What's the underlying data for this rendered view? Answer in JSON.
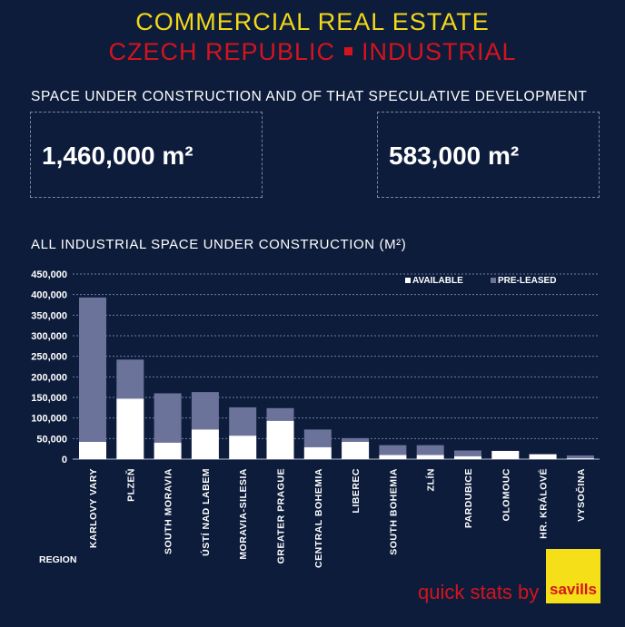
{
  "header": {
    "title_line1": "COMMERCIAL REAL ESTATE",
    "title_line2_a": "CZECH REPUBLIC",
    "title_line2_b": "INDUSTRIAL"
  },
  "summary": {
    "heading": "SPACE UNDER CONSTRUCTION AND OF THAT SPECULATIVE DEVELOPMENT",
    "total_construction": "1,460,000 m²",
    "speculative": "583,000 m²"
  },
  "chart_data": {
    "type": "bar",
    "stacked": true,
    "title": "ALL INDUSTRIAL SPACE UNDER CONSTRUCTION (M²)",
    "xlabel": "REGION",
    "ylabel": "",
    "ylim": [
      0,
      450000
    ],
    "yticks": [
      0,
      50000,
      100000,
      150000,
      200000,
      250000,
      300000,
      350000,
      400000,
      450000
    ],
    "ytick_labels": [
      "0",
      "50,000",
      "100,000",
      "150,000",
      "200,000",
      "250,000",
      "300,000",
      "350,000",
      "400,000",
      "450,000"
    ],
    "grid": true,
    "legend_position": "top-right",
    "categories": [
      "KARLOVY VARY",
      "PLZEŇ",
      "SOUTH MORAVIA",
      "ÚSTÍ NAD LABEM",
      "MORAVIA-SILESIA",
      "GREATER PRAGUE",
      "CENTRAL BOHEMIA",
      "LIBEREC",
      "SOUTH BOHEMIA",
      "ZLÍN",
      "PARDUBICE",
      "OLOMOUC",
      "HR. KRÁLOVÉ",
      "VYSOČINA"
    ],
    "series": [
      {
        "name": "AVAILABLE",
        "color": "#ffffff",
        "values": [
          42000,
          147000,
          40000,
          72000,
          57000,
          93000,
          29000,
          42000,
          10000,
          10000,
          7000,
          20000,
          12000,
          2000
        ]
      },
      {
        "name": "PRE-LEASED",
        "color": "#6b739b",
        "values": [
          351000,
          95000,
          120000,
          91000,
          69000,
          31000,
          43000,
          9000,
          24000,
          24000,
          14000,
          0,
          0,
          7000
        ]
      }
    ]
  },
  "footer": {
    "tagline": "quick stats by",
    "logo_text": "savills",
    "logo_color": "#f4df19"
  }
}
